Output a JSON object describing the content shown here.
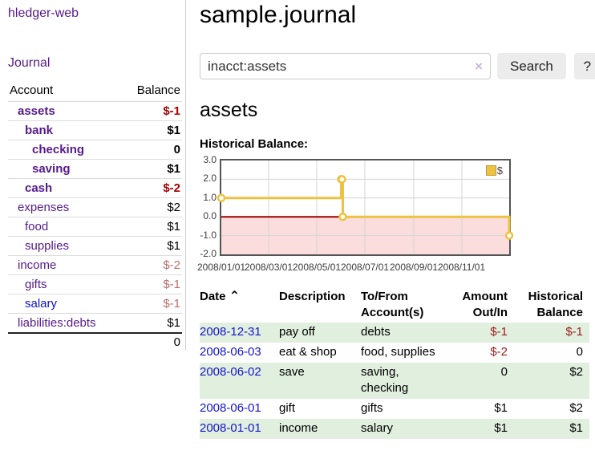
{
  "sidebar": {
    "brand": "hledger-web",
    "journal_link": "Journal",
    "table": {
      "col_account": "Account",
      "col_balance": "Balance"
    },
    "accounts": [
      {
        "name": "assets",
        "depth": 1,
        "bold": true,
        "link_color": "purple",
        "balance": "$-1",
        "balance_style": "neg"
      },
      {
        "name": "bank",
        "depth": 2,
        "bold": true,
        "link_color": "purple",
        "balance": "$1",
        "balance_style": "plain"
      },
      {
        "name": "checking",
        "depth": 3,
        "bold": true,
        "link_color": "purple",
        "balance": "0",
        "balance_style": "plain"
      },
      {
        "name": "saving",
        "depth": 3,
        "bold": true,
        "link_color": "purple",
        "balance": "$1",
        "balance_style": "plain"
      },
      {
        "name": "cash",
        "depth": 2,
        "bold": true,
        "link_color": "purple",
        "balance": "$-2",
        "balance_style": "neg"
      },
      {
        "name": "expenses",
        "depth": 1,
        "bold": false,
        "link_color": "purple",
        "balance": "$2",
        "balance_style": "plain"
      },
      {
        "name": "food",
        "depth": 2,
        "bold": false,
        "link_color": "purple",
        "balance": "$1",
        "balance_style": "plain"
      },
      {
        "name": "supplies",
        "depth": 2,
        "bold": false,
        "link_color": "purple",
        "balance": "$1",
        "balance_style": "plain"
      },
      {
        "name": "income",
        "depth": 1,
        "bold": false,
        "link_color": "purple",
        "balance": "$-2",
        "balance_style": "neg-dim"
      },
      {
        "name": "gifts",
        "depth": 2,
        "bold": false,
        "link_color": "purple",
        "balance": "$-1",
        "balance_style": "neg-dim"
      },
      {
        "name": "salary",
        "depth": 2,
        "bold": false,
        "link_color": "blue",
        "balance": "$-1",
        "balance_style": "neg-dim"
      },
      {
        "name": "liabilities:debts",
        "depth": 1,
        "bold": false,
        "link_color": "purple",
        "balance": "$1",
        "balance_style": "plain"
      }
    ],
    "total": "0"
  },
  "main": {
    "title": "sample.journal",
    "search": {
      "value": "inacct:assets",
      "clear_icon": "×",
      "search_button": "Search",
      "help_button": "?"
    },
    "account_heading": "assets",
    "chart_heading": "Historical Balance:"
  },
  "chart_data": {
    "type": "line",
    "step": true,
    "title": "Historical Balance",
    "x_range": [
      "2008-01-01",
      "2008-12-31"
    ],
    "y_range": [
      -2,
      3
    ],
    "y_ticks": [
      "3.0",
      "2.0",
      "1.0",
      "0.0",
      "-1.0",
      "-2.0"
    ],
    "x_ticks": [
      {
        "label": "2008/01/01",
        "date": "2008-01-01"
      },
      {
        "label": "2008/03/01",
        "date": "2008-03-01"
      },
      {
        "label": "2008/05/01",
        "date": "2008-05-01"
      },
      {
        "label": "2008/07/01",
        "date": "2008-07-01"
      },
      {
        "label": "2008/09/01",
        "date": "2008-09-01"
      },
      {
        "label": "2008/11/01",
        "date": "2008-11-01"
      }
    ],
    "series": [
      {
        "name": "$",
        "color": "#EDC240",
        "points": [
          [
            "2008-01-01",
            1
          ],
          [
            "2008-06-01",
            2
          ],
          [
            "2008-06-02",
            2
          ],
          [
            "2008-06-03",
            0
          ],
          [
            "2008-12-31",
            -1
          ]
        ]
      }
    ],
    "grid": true,
    "legend_position": "top-right",
    "negative_region_color": "#fcdddd",
    "zero_line_color": "#990000",
    "grid_color": "#d4d4d4"
  },
  "register": {
    "headers": {
      "date": "Date",
      "description": "Description",
      "tofrom": "To/From Account(s)",
      "amount": "Amount Out/In",
      "historical": "Historical Balance"
    },
    "sort_indicator": "⌃",
    "rows": [
      {
        "date": "2008-12-31",
        "description": "pay off",
        "accounts": "debts",
        "amount": "$-1",
        "amount_neg": true,
        "historical": "$-1",
        "historical_neg": true
      },
      {
        "date": "2008-06-03",
        "description": "eat & shop",
        "accounts": "food, supplies",
        "amount": "$-2",
        "amount_neg": true,
        "historical": "0",
        "historical_neg": false
      },
      {
        "date": "2008-06-02",
        "description": "save",
        "accounts": "saving, checking",
        "amount": "0",
        "amount_neg": false,
        "historical": "$2",
        "historical_neg": false
      },
      {
        "date": "2008-06-01",
        "description": "gift",
        "accounts": "gifts",
        "amount": "$1",
        "amount_neg": false,
        "historical": "$2",
        "historical_neg": false
      },
      {
        "date": "2008-01-01",
        "description": "income",
        "accounts": "salary",
        "amount": "$1",
        "amount_neg": false,
        "historical": "$1",
        "historical_neg": false
      }
    ]
  },
  "colors": {
    "link_purple": "#551a8b",
    "link_blue": "#0f0fd0",
    "date_link_blue": "#1414cc",
    "negative_strong": "#a40000",
    "negative_dim": "#bb6c6c",
    "register_negative": "#9b1b1b",
    "row_stripe_green": "#e1efdf",
    "button_bg": "#ececec",
    "chart_line_gold": "#EDC240",
    "chart_negative_fill": "#fcdddd",
    "chart_zero_line": "#990000"
  }
}
